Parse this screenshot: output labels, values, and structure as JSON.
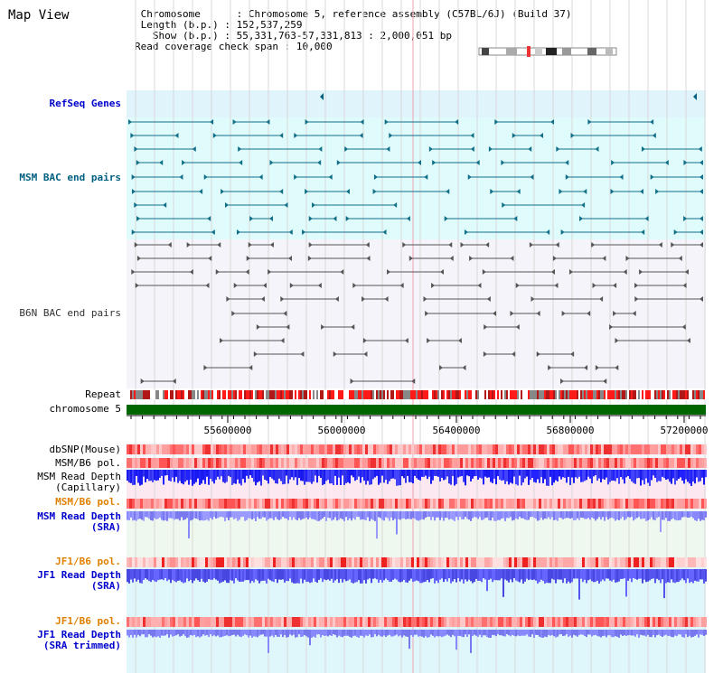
{
  "title": "Map View",
  "info": {
    "chromosome_key": "Chromosome",
    "chromosome_value": "Chromosome 5, reference assembly (C57BL/6J) (Build 37)",
    "length_key": "Length (b.p.)",
    "length_value": "152,537,259",
    "show_key": "Show (b.p.)",
    "show_value": "55,331,763-57,331,813 : 2,000,051 bp",
    "coverage_key": "Read coverage check span",
    "coverage_value": "10,000"
  },
  "tracks": {
    "refseq": {
      "label": "RefSeq Genes",
      "color": "#0000cc"
    },
    "msm_bac": {
      "label": "MSM BAC end pairs",
      "color": "#006080"
    },
    "b6n_bac": {
      "label": "B6N BAC end pairs",
      "color": "#333333"
    },
    "repeat": {
      "label": "Repeat"
    },
    "chromosome": {
      "label": "chromosome 5",
      "color": "#006600"
    },
    "dbsnp": {
      "label": "dbSNP(Mouse)"
    },
    "msm_b6_pol": {
      "label": "MSM/B6 pol."
    },
    "msm_read_cap": {
      "label1": "MSM Read Depth",
      "label2": "(Capillary)"
    },
    "msm_b6_pol2": {
      "label": "MSM/B6 pol.",
      "color": "#e08000"
    },
    "msm_read_sra": {
      "label1": "MSM Read Depth",
      "label2": "(SRA)",
      "color": "#0000cc"
    },
    "jf1_b6_pol": {
      "label": "JF1/B6 pol.",
      "color": "#e08000"
    },
    "jf1_read_sra": {
      "label1": "JF1 Read Depth",
      "label2": "(SRA)",
      "color": "#0000cc"
    },
    "jf1_b6_pol2": {
      "label": "JF1/B6 pol.",
      "color": "#e08000"
    },
    "jf1_read_trim": {
      "label1": "JF1 Read Depth",
      "label2": "(SRA trimmed)",
      "color": "#0000cc"
    }
  },
  "axis": {
    "ticks": [
      "55600000",
      "56000000",
      "56400000",
      "56800000",
      "57200000"
    ]
  }
}
